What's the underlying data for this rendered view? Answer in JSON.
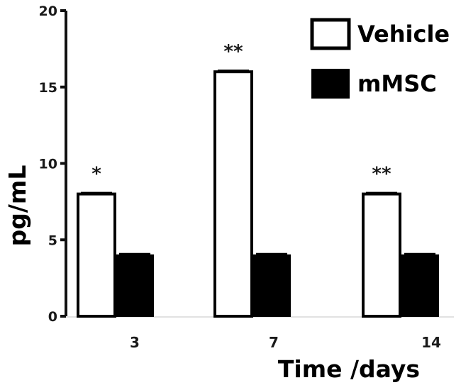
{
  "chart_data": {
    "type": "bar",
    "categories": [
      "3",
      "7",
      "14"
    ],
    "series": [
      {
        "name": "Vehicle",
        "values": [
          8,
          16,
          8
        ],
        "color": "#ffffff"
      },
      {
        "name": "mMSC",
        "values": [
          4,
          4,
          4
        ],
        "color": "#000000"
      }
    ],
    "significance": [
      "*",
      "**",
      "**"
    ],
    "xlabel": "Time /days",
    "ylabel": "pg/mL",
    "ylim": [
      0,
      20
    ],
    "yticks": [
      0,
      5,
      10,
      15,
      20
    ],
    "legend_position": "top-right",
    "grid": false
  }
}
